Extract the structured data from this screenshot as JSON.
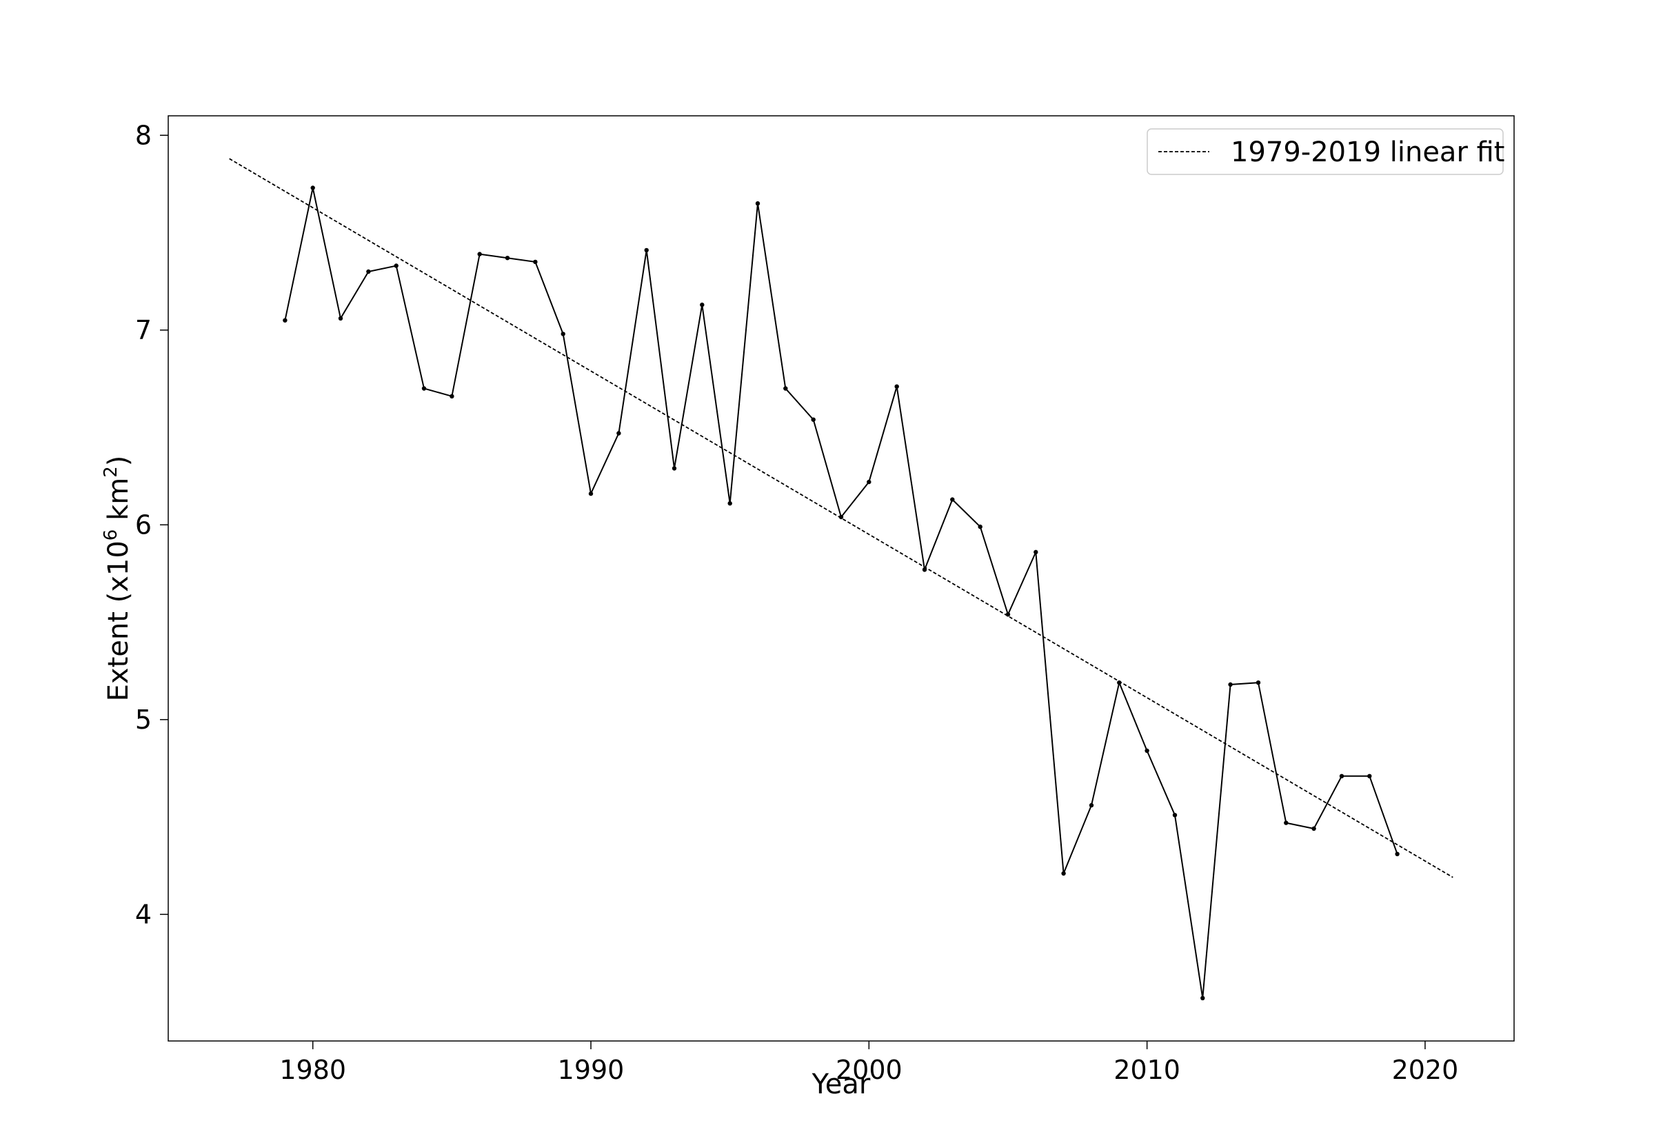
{
  "chart_data": {
    "type": "line",
    "title": "",
    "xlabel": "Year",
    "ylabel": {
      "prefix": "Extent (x10",
      "superscript_1": "6",
      "middle": " km",
      "superscript_2": "2",
      "suffix": ")"
    },
    "xlim": [
      1974.8,
      2023.2
    ],
    "ylim": [
      3.35,
      8.1
    ],
    "x_ticks": [
      1980,
      1990,
      2000,
      2010,
      2020
    ],
    "y_ticks": [
      4,
      5,
      6,
      7,
      8
    ],
    "grid": false,
    "legend": {
      "position": "top-right"
    },
    "series": [
      {
        "style": "solid",
        "color": "#000000",
        "marker": "dot",
        "x": [
          1979,
          1980,
          1981,
          1982,
          1983,
          1984,
          1985,
          1986,
          1987,
          1988,
          1989,
          1990,
          1991,
          1992,
          1993,
          1994,
          1995,
          1996,
          1997,
          1998,
          1999,
          2000,
          2001,
          2002,
          2003,
          2004,
          2005,
          2006,
          2007,
          2008,
          2009,
          2010,
          2011,
          2012,
          2013,
          2014,
          2015,
          2016,
          2017,
          2018,
          2019
        ],
        "y": [
          7.05,
          7.73,
          7.06,
          7.3,
          7.33,
          6.7,
          6.66,
          7.39,
          7.37,
          7.35,
          6.98,
          6.16,
          6.47,
          7.41,
          6.29,
          7.13,
          6.11,
          7.65,
          6.7,
          6.54,
          6.04,
          6.22,
          6.71,
          5.77,
          6.13,
          5.99,
          5.54,
          5.86,
          4.21,
          4.56,
          5.19,
          4.84,
          4.51,
          3.57,
          5.18,
          5.19,
          4.47,
          4.44,
          4.71,
          4.71,
          4.31
        ]
      },
      {
        "name": "1979-2019 linear fit",
        "style": "dashed",
        "color": "#000000",
        "x": [
          1977,
          2021
        ],
        "y": [
          7.88,
          4.19
        ]
      }
    ]
  }
}
